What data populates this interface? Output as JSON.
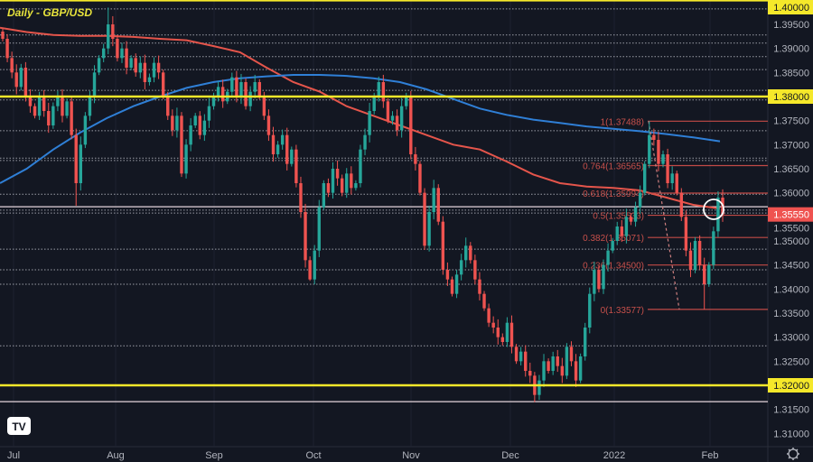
{
  "title": "Daily - GBP/USD",
  "colors": {
    "background": "#131722",
    "up": "#26a69a",
    "down": "#ef5350",
    "fib": "#c24a46",
    "key_level": "#f5e82a",
    "ma_red": "#e5554b",
    "ma_blue": "#2f7fd6",
    "dotted_level": "#c9ccd4"
  },
  "chart_data": {
    "type": "candlestick",
    "title": "Daily - GBP/USD",
    "x_ticks": [
      "Jul",
      "Aug",
      "Sep",
      "Oct",
      "Nov",
      "Dec",
      "2022",
      "Feb"
    ],
    "y_ticks": [
      "1.40000",
      "1.39500",
      "1.39000",
      "1.38500",
      "1.38000",
      "1.37500",
      "1.37000",
      "1.36500",
      "1.36000",
      "1.35500",
      "1.35000",
      "1.34500",
      "1.34000",
      "1.33500",
      "1.33000",
      "1.32500",
      "1.32000",
      "1.31500",
      "1.31000"
    ],
    "ylim": [
      1.3085,
      1.4008
    ],
    "grid": "vertical month lines",
    "close": [
      1.392,
      1.388,
      1.385,
      1.382,
      1.386,
      1.38,
      1.378,
      1.376,
      1.38,
      1.377,
      1.374,
      1.378,
      1.38,
      1.376,
      1.379,
      1.372,
      1.362,
      1.37,
      1.376,
      1.38,
      1.385,
      1.388,
      1.39,
      1.395,
      1.392,
      1.388,
      1.39,
      1.386,
      1.388,
      1.385,
      1.387,
      1.383,
      1.384,
      1.387,
      1.385,
      1.38,
      1.376,
      1.373,
      1.376,
      1.364,
      1.37,
      1.374,
      1.376,
      1.372,
      1.375,
      1.378,
      1.38,
      1.382,
      1.379,
      1.381,
      1.384,
      1.38,
      1.383,
      1.378,
      1.381,
      1.383,
      1.38,
      1.376,
      1.372,
      1.368,
      1.37,
      1.372,
      1.366,
      1.369,
      1.362,
      1.356,
      1.346,
      1.342,
      1.348,
      1.357,
      1.362,
      1.36,
      1.365,
      1.363,
      1.36,
      1.364,
      1.361,
      1.362,
      1.369,
      1.372,
      1.377,
      1.38,
      1.383,
      1.379,
      1.375,
      1.376,
      1.373,
      1.378,
      1.38,
      1.368,
      1.366,
      1.36,
      1.349,
      1.356,
      1.361,
      1.354,
      1.344,
      1.342,
      1.339,
      1.343,
      1.346,
      1.349,
      1.346,
      1.342,
      1.339,
      1.336,
      1.333,
      1.332,
      1.33,
      1.329,
      1.333,
      1.328,
      1.325,
      1.327,
      1.323,
      1.322,
      1.318,
      1.321,
      1.325,
      1.323,
      1.326,
      1.324,
      1.322,
      1.328,
      1.325,
      1.321,
      1.326,
      1.332,
      1.339,
      1.344,
      1.34,
      1.345,
      1.348,
      1.35,
      1.353,
      1.351,
      1.355,
      1.354,
      1.357,
      1.36,
      1.366,
      1.372,
      1.371,
      1.366,
      1.368,
      1.362,
      1.364,
      1.36,
      1.355,
      1.348,
      1.344,
      1.35,
      1.345,
      1.341,
      1.345,
      1.352,
      1.359,
      1.3555
    ],
    "moving_averages": [
      {
        "color": "#e5554b",
        "values": [
          1.3943,
          1.3934,
          1.3928,
          1.3926,
          1.3926,
          1.3924,
          1.392,
          1.3917,
          1.3905,
          1.3892,
          1.386,
          1.383,
          1.381,
          1.378,
          1.376,
          1.374,
          1.372,
          1.37,
          1.369,
          1.3665,
          1.3638,
          1.362,
          1.3613,
          1.361,
          1.3605,
          1.359,
          1.3575,
          1.3567
        ]
      },
      {
        "color": "#2f7fd6",
        "values": [
          1.362,
          1.365,
          1.369,
          1.3725,
          1.3755,
          1.378,
          1.38,
          1.3818,
          1.383,
          1.3838,
          1.3842,
          1.3845,
          1.3845,
          1.3843,
          1.3838,
          1.383,
          1.3815,
          1.3795,
          1.3775,
          1.3762,
          1.3752,
          1.3745,
          1.3738,
          1.3733,
          1.3728,
          1.3722,
          1.3715,
          1.3707
        ]
      }
    ],
    "key_levels": [
      1.4,
      1.38,
      1.32
    ],
    "dotted_levels": [
      1.3982,
      1.3928,
      1.3911,
      1.3883,
      1.3856,
      1.3813,
      1.3793,
      1.3729,
      1.3672,
      1.3667,
      1.3597,
      1.3564,
      1.3558,
      1.3483,
      1.344,
      1.341,
      1.3282
    ],
    "solid_levels": [
      1.3571,
      1.3166
    ],
    "fibonacci": [
      {
        "label": "1(1.37488)",
        "price": 1.37488
      },
      {
        "label": "0.764(1.36565)",
        "price": 1.36565
      },
      {
        "label": "0.618(1.35994)",
        "price": 1.35994
      },
      {
        "label": "0.5(1.35533)",
        "price": 1.35533
      },
      {
        "label": "0.382(1.35071)",
        "price": 1.35071
      },
      {
        "label": "0.236(1.34500)",
        "price": 1.345
      },
      {
        "label": "0(1.33577)",
        "price": 1.33577
      }
    ],
    "fib_high": 1.37488,
    "fib_low": 1.33577,
    "current_price": "1.35550",
    "highlighted_axis_labels": [
      "1.40000",
      "1.38000",
      "1.32000"
    ]
  },
  "footer": {
    "logo": "TV",
    "settings_icon": "gear-icon"
  }
}
